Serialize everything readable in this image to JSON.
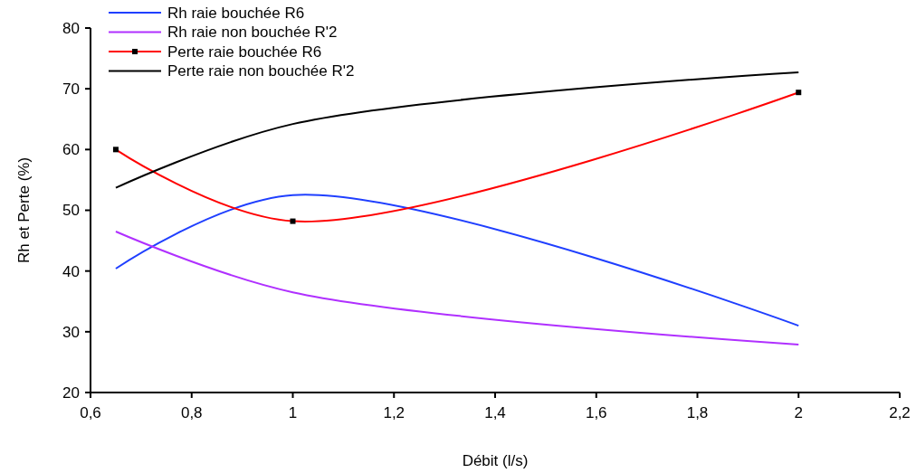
{
  "chart_data": {
    "type": "line",
    "xlabel": "Débit (l/s)",
    "ylabel": "Rh et Perte (%)",
    "xlim": [
      0.6,
      2.2
    ],
    "xticks": [
      {
        "value": 0.6,
        "label": "0,6"
      },
      {
        "value": 0.8,
        "label": "0,8"
      },
      {
        "value": 1,
        "label": "1"
      },
      {
        "value": 1.2,
        "label": "1,2"
      },
      {
        "value": 1.4,
        "label": "1,4"
      },
      {
        "value": 1.6,
        "label": "1,6"
      },
      {
        "value": 1.8,
        "label": "1,8"
      },
      {
        "value": 2,
        "label": "2"
      },
      {
        "value": 2.2,
        "label": "2,2"
      }
    ],
    "ylim": [
      20,
      80
    ],
    "yticks": [
      20,
      30,
      40,
      50,
      60,
      70,
      80
    ],
    "grid": false,
    "legend": "top left",
    "x": [
      0.65,
      1,
      2
    ],
    "series": [
      {
        "name": "Rh raie bouchée R6",
        "color": "#1f3fff",
        "values": [
          40.4,
          52.5,
          31
        ],
        "marker": "none"
      },
      {
        "name": "Rh raie non bouchée R'2",
        "color": "#b030ff",
        "values": [
          46.5,
          36.5,
          27.9
        ],
        "marker": "none"
      },
      {
        "name": "Perte raie bouchée R6",
        "color": "#ff0000",
        "values": [
          60,
          48.2,
          69.4
        ],
        "marker": "square"
      },
      {
        "name": "Perte raie non bouchée R'2",
        "color": "#000000",
        "values": [
          53.7,
          64.2,
          72.7
        ],
        "marker": "none"
      }
    ]
  }
}
